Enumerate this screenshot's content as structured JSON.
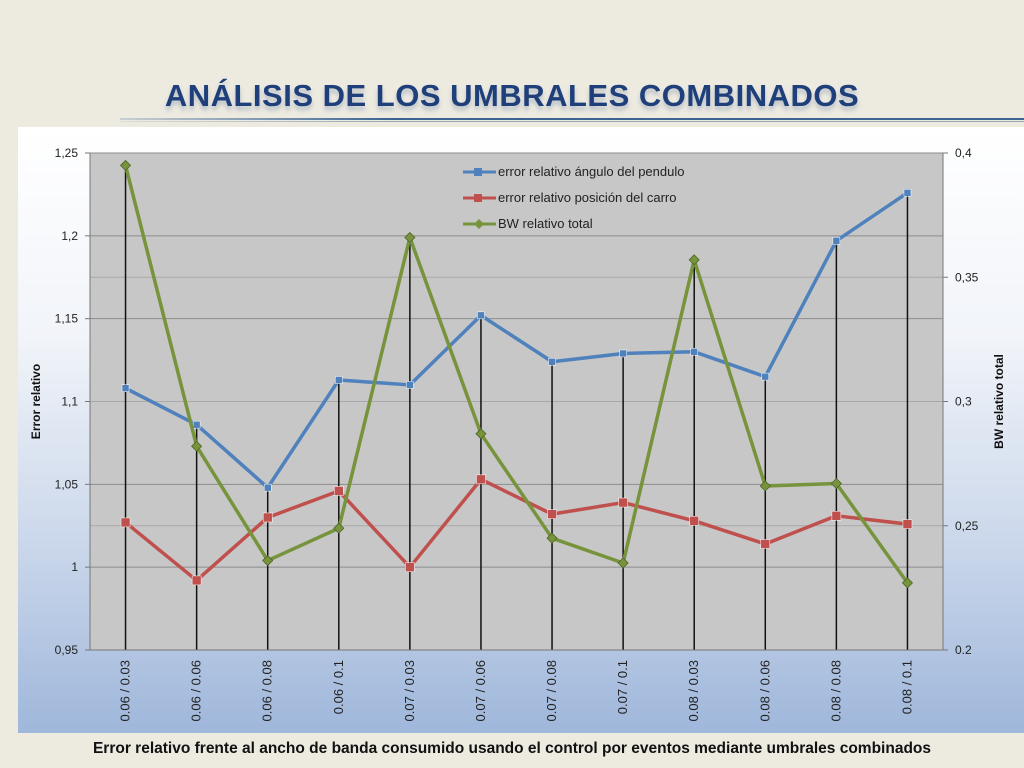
{
  "slide": {
    "title": "ANÁLISIS DE LOS UMBRALES COMBINADOS",
    "caption": "Error relativo frente al ancho de banda consumido usando el control por eventos mediante umbrales combinados"
  },
  "chart_data": {
    "type": "line",
    "categories": [
      "0.06 / 0.03",
      "0.06 / 0.06",
      "0.06 / 0.08",
      "0.06 / 0.1",
      "0.07 / 0.03",
      "0.07 / 0.06",
      "0.07 / 0.08",
      "0.07 / 0.1",
      "0.08 / 0.03",
      "0.08 / 0.06",
      "0.08 / 0.08",
      "0.08 / 0.1"
    ],
    "ylabel": "Error relativo",
    "y2label": "BW relativo total",
    "ylim": [
      0.95,
      1.25
    ],
    "y2lim": [
      0.2,
      0.4
    ],
    "yticks": [
      "0,95",
      "1",
      "1,05",
      "1,1",
      "1,15",
      "1,2",
      "1,25"
    ],
    "y2ticks": [
      "0.2",
      "0,25",
      "0,3",
      "0,35",
      "0,4"
    ],
    "y2ticks_display": [
      "0.2",
      "0,25",
      "0,3",
      "0,35",
      "0,4"
    ],
    "grid": true,
    "legend_position": "top-center",
    "series": [
      {
        "name": "error relativo ángulo del pendulo",
        "axis": "left",
        "color": "#4f81bd",
        "marker": "square",
        "values": [
          1.108,
          1.086,
          1.048,
          1.113,
          1.11,
          1.152,
          1.124,
          1.129,
          1.13,
          1.115,
          1.197,
          1.226
        ]
      },
      {
        "name": "error relativo posición del carro",
        "axis": "left",
        "color": "#c0504d",
        "marker": "square",
        "values": [
          1.027,
          0.992,
          1.03,
          1.046,
          1.0,
          1.053,
          1.032,
          1.039,
          1.028,
          1.014,
          1.031,
          1.026
        ]
      },
      {
        "name": "BW relativo total",
        "axis": "right",
        "color": "#77933c",
        "marker": "diamond",
        "values": [
          0.395,
          0.282,
          0.236,
          0.249,
          0.366,
          0.287,
          0.245,
          0.235,
          0.357,
          0.266,
          0.267,
          0.227
        ]
      }
    ]
  }
}
